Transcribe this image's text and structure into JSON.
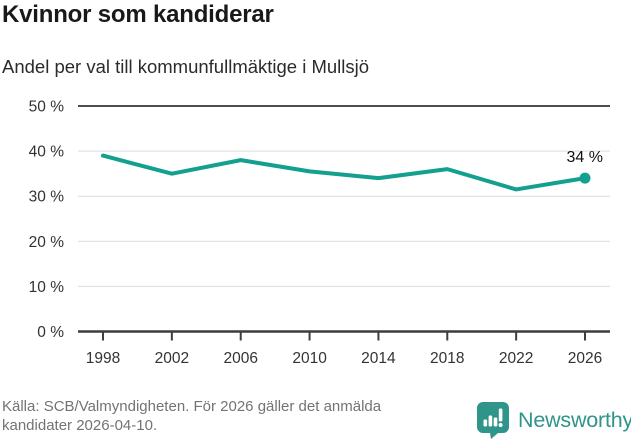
{
  "header": {
    "title": "Kvinnor som kandiderar",
    "subtitle": "Andel per val till kommunfullmäktige i Mullsjö"
  },
  "chart_data": {
    "type": "line",
    "title": "Kvinnor som kandiderar",
    "subtitle": "Andel per val till kommunfullmäktige i Mullsjö",
    "categories": [
      "1998",
      "2002",
      "2006",
      "2010",
      "2014",
      "2018",
      "2022",
      "2026"
    ],
    "values": [
      39,
      35,
      38,
      35.5,
      34,
      36,
      31.5,
      34
    ],
    "unit": "%",
    "xlabel": "",
    "ylabel": "",
    "ylim": [
      0,
      50
    ],
    "ytick_step": 10,
    "ytick_labels": [
      "0 %",
      "10 %",
      "20 %",
      "30 %",
      "40 %",
      "50 %"
    ],
    "grid": "horizontal",
    "legend": "none",
    "last_point_label": "34 %"
  },
  "footer": {
    "source_line1": "Källa: SCB/Valmyndigheten. För 2026 gäller det anmälda",
    "source_line2": "kandidater 2026-04-10.",
    "brand": "Newsworthy"
  },
  "colors": {
    "line": "#14a08f",
    "frame_top": "#4d4d4d",
    "axis": "#3d3d3d",
    "grid": "#dcdcdc",
    "axis_text": "#333333",
    "annotation_text": "#111111",
    "brand_teal": "#2f9489",
    "muted_text": "#737373"
  }
}
